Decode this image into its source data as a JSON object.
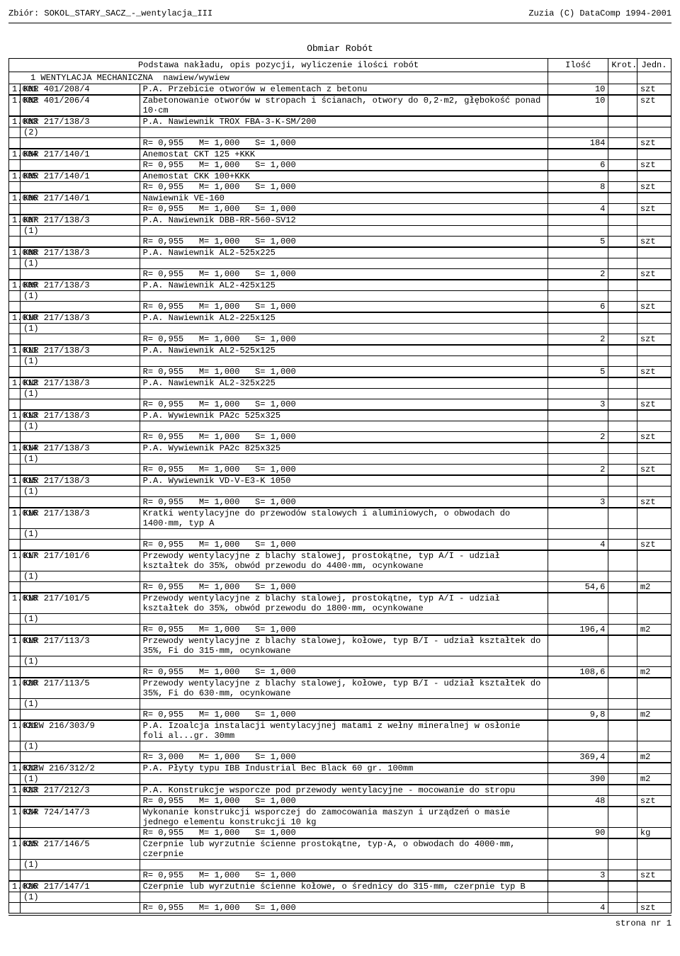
{
  "header": {
    "left": "Zbiór: SOKOL_STARY_SACZ_-_wentylacja_III",
    "right": "Zuzia (C) DataComp 1994-2001"
  },
  "title": "Obmiar Robót",
  "columns": {
    "basis": "Podstawa nakładu, opis pozycji, wyliczenie ilości robót",
    "qty": "Ilość",
    "krot": "Krot.",
    "unit": "Jedn."
  },
  "section": {
    "num": "1",
    "name": "WENTYLACJA MECHANICZNA  nawiew/wywiew"
  },
  "params_default": "R= 0,955   M= 1,000   S= 1,000",
  "params_alt": "R= 3,000   M= 1,000   S= 1,000",
  "rows": [
    {
      "lp": "1.001",
      "knr": "KNR 401/208/4",
      "desc": "P.A. Przebicie otworów w elementach z betonu",
      "qty": "10",
      "unit": "szt"
    },
    {
      "lp": "1.002",
      "knr": "KNR 401/206/4",
      "desc": "Zabetonowanie otworów w stropach i ścianach, otwory do 0,2·m2, głębokość ponad 10·cm",
      "qty": "10",
      "unit": "szt"
    },
    {
      "lp": "1.003",
      "knr": "KNR 217/138/3",
      "sub": "(2)",
      "desc": "P.A. Nawiewnik TROX FBA-3-K-SM/200",
      "params": true,
      "qty": "184",
      "unit": "szt"
    },
    {
      "lp": "1.004",
      "knr": "KNR 217/140/1",
      "desc": "Anemostat CKT 125 +KKK",
      "params": true,
      "qty": "6",
      "unit": "szt"
    },
    {
      "lp": "1.005",
      "knr": "KNR 217/140/1",
      "desc": "Anemostat CKK 100+KKK",
      "params": true,
      "qty": "8",
      "unit": "szt"
    },
    {
      "lp": "1.006",
      "knr": "KNR 217/140/1",
      "desc": "Nawiewnik VE-160",
      "params": true,
      "qty": "4",
      "unit": "szt"
    },
    {
      "lp": "1.007",
      "knr": "KNR 217/138/3",
      "sub": "(1)",
      "desc": "P.A. Nawiewnik DBB-RR-560-SV12",
      "params": true,
      "qty": "5",
      "unit": "szt"
    },
    {
      "lp": "1.008",
      "knr": "KNR 217/138/3",
      "sub": "(1)",
      "desc": "P.A. Nawiewnik AL2-525x225",
      "params": true,
      "qty": "2",
      "unit": "szt"
    },
    {
      "lp": "1.009",
      "knr": "KNR 217/138/3",
      "sub": "(1)",
      "desc": "P.A. Nawiewnik AL2-425x125",
      "params": true,
      "qty": "6",
      "unit": "szt"
    },
    {
      "lp": "1.010",
      "knr": "KNR 217/138/3",
      "sub": "(1)",
      "desc": "P.A. Nawiewnik AL2-225x125",
      "params": true,
      "qty": "2",
      "unit": "szt"
    },
    {
      "lp": "1.011",
      "knr": "KNR 217/138/3",
      "sub": "(1)",
      "desc": "P.A. Nawiewnik AL2-525x125",
      "params": true,
      "qty": "5",
      "unit": "szt"
    },
    {
      "lp": "1.012",
      "knr": "KNR 217/138/3",
      "sub": "(1)",
      "desc": "P.A. Nawiewnik AL2-325x225",
      "params": true,
      "qty": "3",
      "unit": "szt"
    },
    {
      "lp": "1.013",
      "knr": "KNR 217/138/3",
      "sub": "(1)",
      "desc": "P.A. Wywiewnik PA2c 525x325",
      "params": true,
      "qty": "2",
      "unit": "szt"
    },
    {
      "lp": "1.014",
      "knr": "KNR 217/138/3",
      "sub": "(1)",
      "desc": "P.A. Wywiewnik PA2c 825x325",
      "params": true,
      "qty": "2",
      "unit": "szt"
    },
    {
      "lp": "1.015",
      "knr": "KNR 217/138/3",
      "sub": "(1)",
      "desc": "P.A. Wywiewnik VD-V-E3-K 1050",
      "params": true,
      "qty": "3",
      "unit": "szt"
    },
    {
      "lp": "1.016",
      "knr": "KNR 217/138/3",
      "sub": "(1)",
      "desc": "Kratki wentylacyjne do przewodów stalowych i aluminiowych, o obwodach do 1400·mm, typ A",
      "params": true,
      "qty": "4",
      "unit": "szt"
    },
    {
      "lp": "1.017",
      "knr": "KNR 217/101/6",
      "sub": "(1)",
      "desc": "Przewody wentylacyjne z blachy stalowej, prostokątne, typ A/I - udział kształtek do 35%, obwód przewodu do 4400·mm, ocynkowane",
      "params": true,
      "qty": "54,6",
      "unit": "m2"
    },
    {
      "lp": "1.018",
      "knr": "KNR 217/101/5",
      "sub": "(1)",
      "desc": "Przewody wentylacyjne z blachy stalowej, prostokątne, typ A/I - udział kształtek do 35%, obwód przewodu do 1800·mm, ocynkowane",
      "params": true,
      "qty": "196,4",
      "unit": "m2"
    },
    {
      "lp": "1.019",
      "knr": "KNR 217/113/3",
      "sub": "(1)",
      "desc": "Przewody wentylacyjne z blachy stalowej, kołowe, typ B/I - udział kształtek do 35%, Fi do 315·mm, ocynkowane",
      "params": true,
      "qty": "108,6",
      "unit": "m2"
    },
    {
      "lp": "1.020",
      "knr": "KNR 217/113/5",
      "sub": "(1)",
      "desc": "Przewody wentylacyjne z blachy stalowej, kołowe, typ B/I - udział kształtek do 35%, Fi do 630·mm, ocynkowane",
      "params": true,
      "qty": "9,8",
      "unit": "m2"
    },
    {
      "lp": "1.021",
      "knr": "KNRW 216/303/9",
      "sub": "(1)",
      "desc": "P.A. Izoalcja instalacji wentylacyjnej matami z wełny mineralnej w osłonie foli al...gr. 30mm",
      "params": "alt",
      "qty": "369,4",
      "unit": "m2"
    },
    {
      "lp": "1.022",
      "knr": "KNRW 216/312/2",
      "sub": "(1)",
      "desc": "P.A. Płyty typu IBB Industrial Bec Black 60 gr. 100mm",
      "qty": "390",
      "unit": "m2"
    },
    {
      "lp": "1.023",
      "knr": "KNR 217/212/3",
      "desc": "P.A. Konstrukcje wsporcze pod przewody wentylacyjne  - mocowanie do stropu",
      "params": true,
      "qty": "48",
      "unit": "szt"
    },
    {
      "lp": "1.024",
      "knr": "KNR 724/147/3",
      "desc": "Wykonanie konstrukcji wsporczej do zamocowania maszyn i urządzeń o masie jednego elementu konstrukcji 10 kg",
      "params": true,
      "qty": "90",
      "unit": "kg"
    },
    {
      "lp": "1.025",
      "knr": "KNR 217/146/5",
      "sub": "(1)",
      "desc": "Czerpnie lub wyrzutnie ścienne prostokątne, typ·A, o obwodach do 4000·mm, czerpnie",
      "params": true,
      "qty": "3",
      "unit": "szt"
    },
    {
      "lp": "1.026",
      "knr": "KNR 217/147/1",
      "sub": "(1)",
      "desc": "Czerpnie lub wyrzutnie ścienne kołowe, o średnicy do 315·mm, czerpnie typ B",
      "params": true,
      "qty": "4",
      "unit": "szt"
    }
  ],
  "footer": "strona nr   1"
}
